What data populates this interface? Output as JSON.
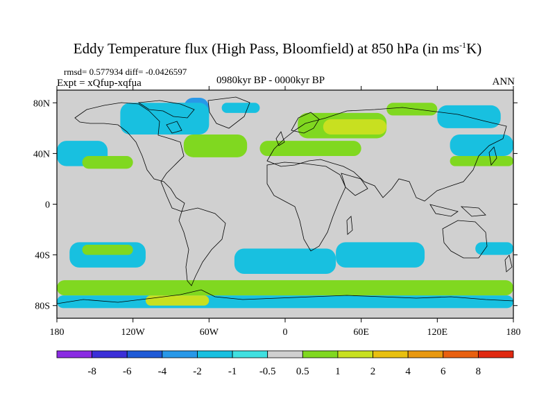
{
  "title": {
    "main": "Eddy Temperature flux (High Pass, Bloomfield) at 850 hPa (in ms",
    "sup": "-1",
    "unit_end": "K)"
  },
  "stats": "rmsd= 0.577934 diff= -0.0426597",
  "expt": "Expt = xQfup-xqfua",
  "period": "0980kyr BP - 0000kyr BP",
  "season": "ANN",
  "map": {
    "projection": "cylindrical-equidistant",
    "lon_range": [
      -180,
      180
    ],
    "lat_range": [
      -90,
      90
    ],
    "background_color": "#d0d0d0",
    "x_ticks": [
      {
        "lon": -180,
        "label": "180"
      },
      {
        "lon": -120,
        "label": "120W"
      },
      {
        "lon": -60,
        "label": "60W"
      },
      {
        "lon": 0,
        "label": "0"
      },
      {
        "lon": 60,
        "label": "60E"
      },
      {
        "lon": 120,
        "label": "120E"
      },
      {
        "lon": 180,
        "label": "180"
      }
    ],
    "y_ticks": [
      {
        "lat": 80,
        "label": "80N"
      },
      {
        "lat": 40,
        "label": "40N"
      },
      {
        "lat": 0,
        "label": "0"
      },
      {
        "lat": -40,
        "label": "40S"
      },
      {
        "lat": -80,
        "label": "80S"
      }
    ]
  },
  "colorbar": {
    "colors": [
      "#8a2be2",
      "#3c2fd8",
      "#1f5ad6",
      "#2898e8",
      "#18c0e0",
      "#40e0e0",
      "#d0d0d0",
      "#80d820",
      "#c8e020",
      "#e8c010",
      "#e89810",
      "#e86010",
      "#e02810"
    ],
    "labels": [
      "-8",
      "-6",
      "-4",
      "-2",
      "-1",
      "-0.5",
      "0.5",
      "1",
      "2",
      "4",
      "6",
      "8"
    ]
  },
  "chart_data": {
    "type": "heatmap",
    "note_levels": [
      -8,
      -6,
      -4,
      -2,
      -1,
      -0.5,
      0.5,
      1,
      2,
      4,
      6,
      8
    ],
    "regions": [
      {
        "lon": [
          -80,
          -60
        ],
        "lat": [
          62,
          84
        ],
        "level": -2
      },
      {
        "lon": [
          -130,
          -60
        ],
        "lat": [
          55,
          80
        ],
        "level": -1
      },
      {
        "lon": [
          -50,
          -20
        ],
        "lat": [
          72,
          80
        ],
        "level": -1
      },
      {
        "lon": [
          -80,
          -30
        ],
        "lat": [
          37,
          55
        ],
        "level": 1
      },
      {
        "lon": [
          -20,
          60
        ],
        "lat": [
          38,
          50
        ],
        "level": 1
      },
      {
        "lon": [
          10,
          80
        ],
        "lat": [
          52,
          72
        ],
        "level": 1
      },
      {
        "lon": [
          30,
          80
        ],
        "lat": [
          55,
          67
        ],
        "level": 2
      },
      {
        "lon": [
          80,
          120
        ],
        "lat": [
          70,
          80
        ],
        "level": 1
      },
      {
        "lon": [
          120,
          170
        ],
        "lat": [
          60,
          78
        ],
        "level": -1
      },
      {
        "lon": [
          130,
          180
        ],
        "lat": [
          38,
          55
        ],
        "level": -1
      },
      {
        "lon": [
          130,
          180
        ],
        "lat": [
          30,
          38
        ],
        "level": 1
      },
      {
        "lon": [
          -180,
          -140
        ],
        "lat": [
          30,
          50
        ],
        "level": -1
      },
      {
        "lon": [
          -160,
          -120
        ],
        "lat": [
          28,
          38
        ],
        "level": 1
      },
      {
        "lon": [
          -170,
          -110
        ],
        "lat": [
          -50,
          -30
        ],
        "level": -1
      },
      {
        "lon": [
          -160,
          -120
        ],
        "lat": [
          -40,
          -32
        ],
        "level": 1
      },
      {
        "lon": [
          -40,
          40
        ],
        "lat": [
          -55,
          -35
        ],
        "level": -1
      },
      {
        "lon": [
          40,
          110
        ],
        "lat": [
          -50,
          -30
        ],
        "level": -1
      },
      {
        "lon": [
          150,
          180
        ],
        "lat": [
          -40,
          -30
        ],
        "level": -1
      },
      {
        "lon": [
          -180,
          180
        ],
        "lat": [
          -72,
          -60
        ],
        "level": 1
      },
      {
        "lon": [
          -180,
          180
        ],
        "lat": [
          -82,
          -72
        ],
        "level": -1
      },
      {
        "lon": [
          -110,
          -60
        ],
        "lat": [
          -80,
          -72
        ],
        "level": 2
      }
    ]
  }
}
